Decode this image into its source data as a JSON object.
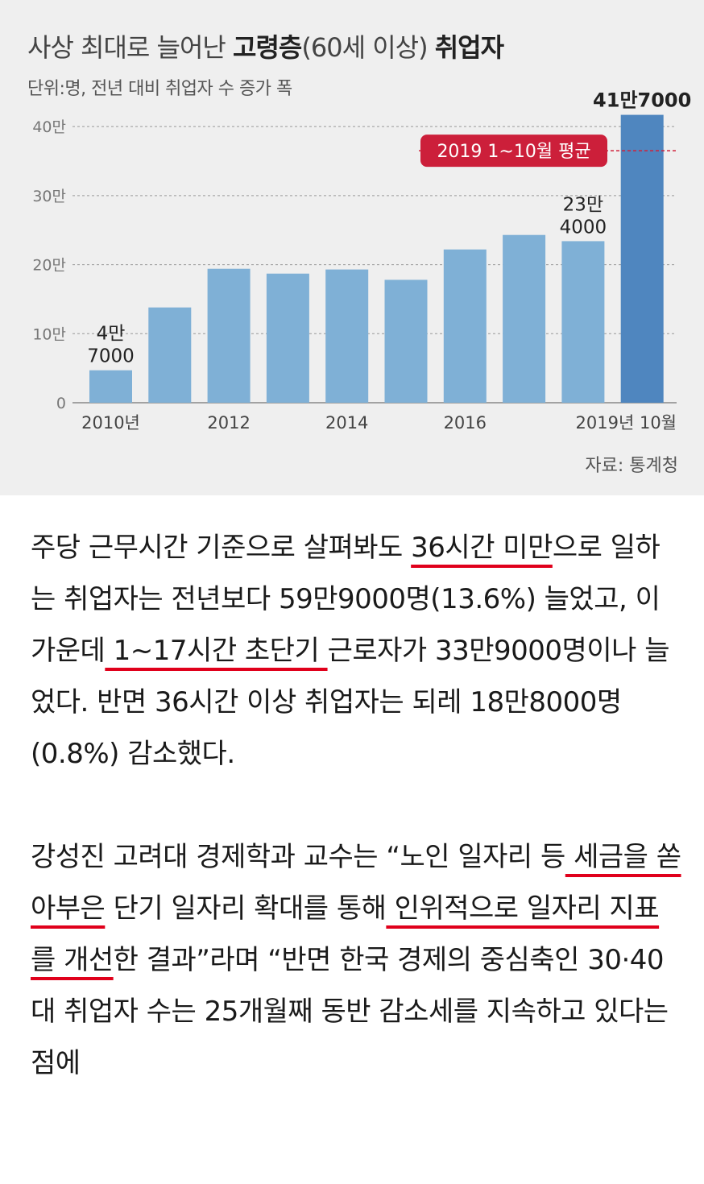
{
  "chart_header": {
    "title_prefix": "사상 최대로 늘어난 ",
    "title_bold1": "고령층",
    "title_mid": "(60세 이상) ",
    "title_bold2": "취업자",
    "subtitle": "단위:명, 전년 대비 취업자 수 증가 폭",
    "source": "자료: 통계청"
  },
  "colors": {
    "bar": "#7fb0d6",
    "bar_highlight": "#4f86bf",
    "avg_line": "#d0203a",
    "avg_badge": "#cc1f3a",
    "underline": "#e0001b"
  },
  "chart_data": {
    "type": "bar",
    "categories": [
      "2010",
      "2011",
      "2012",
      "2013",
      "2014",
      "2015",
      "2016",
      "2017",
      "2018",
      "2019 10월"
    ],
    "x_tick_labels": [
      "2010년",
      "",
      "2012",
      "",
      "2014",
      "",
      "2016",
      "",
      "",
      "2019년 10월"
    ],
    "values": [
      47000,
      138000,
      194000,
      187000,
      193000,
      178000,
      222000,
      243000,
      234000,
      417000
    ],
    "y_ticks": [
      0,
      100000,
      200000,
      300000,
      400000
    ],
    "y_tick_labels": [
      "0",
      "10만",
      "20만",
      "30만",
      "40만"
    ],
    "ylim": [
      0,
      420000
    ],
    "data_labels": [
      {
        "index": 0,
        "lines": [
          "4만",
          "7000"
        ]
      },
      {
        "index": 8,
        "lines": [
          "23만",
          "4000"
        ]
      },
      {
        "index": 9,
        "lines": [
          "41만7000"
        ]
      }
    ],
    "reference_line": {
      "value": 365000,
      "label": "2019 1~10월 평균"
    },
    "grid": true
  },
  "article": {
    "p1": [
      {
        "t": "주당 근무시간 기준으로 살펴봐도 "
      },
      {
        "t": "36시간 미만",
        "hl": true
      },
      {
        "t": "으로 일하는 취업자는 전년보다 59만9000명(13.6%) 늘었고, 이 가운데"
      },
      {
        "t": " 1~17시간 초단기 ",
        "hl": true
      },
      {
        "t": "근로자가 33만9000명이나 늘었다. 반면 36시간 이상 취업자는 되레 18만8000명(0.8%) 감소했다."
      }
    ],
    "p2": [
      {
        "t": "강성진 고려대 경제학과 교수는 “노인 일자리 등"
      },
      {
        "t": " 세금을 쏟아부은",
        "hl": true
      },
      {
        "t": " 단기 일자리 확대를 통해"
      },
      {
        "t": " 인위적으로 일자리 지표를 개선",
        "hl": true
      },
      {
        "t": "한 결과”라며 “반면 한국 경제의 중심축인 30·40대 취업자 수는 25개월째 동반 감소세를 지속하고 있다는 점에"
      }
    ]
  }
}
